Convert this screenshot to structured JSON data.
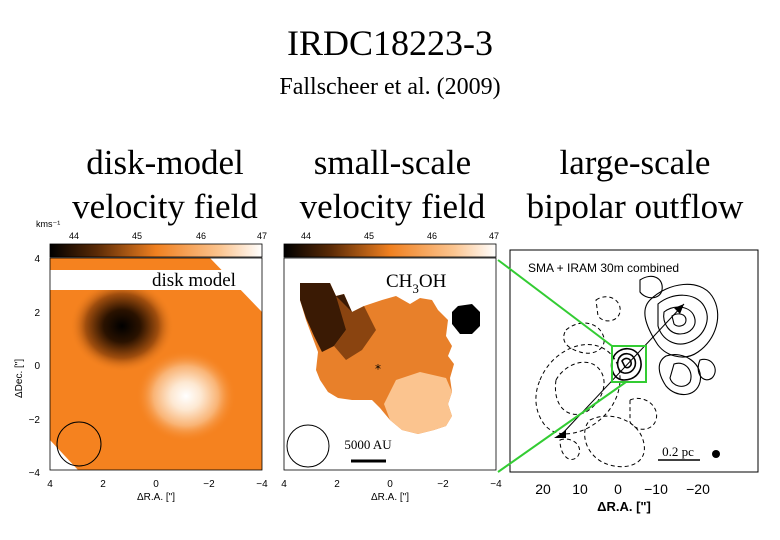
{
  "title": "IRDC18223-3",
  "citation": "Fallscheer et al. (2009)",
  "columns": [
    {
      "line1": "disk-model",
      "line2": "velocity field"
    },
    {
      "line1": "small-scale",
      "line2": "velocity field"
    },
    {
      "line1": "large-scale",
      "line2": "bipolar outflow"
    }
  ],
  "colorbar": {
    "unit": "kms⁻¹",
    "ticks": [
      "44",
      "45",
      "46",
      "47"
    ]
  },
  "panel1": {
    "label": "disk model",
    "yaxis_label": "ΔDec. [\"]",
    "yticks": [
      "4",
      "2",
      "0",
      "−2",
      "−4"
    ],
    "xticks": [
      "4",
      "2",
      "0",
      "−2",
      "−4"
    ],
    "xaxis_label": "ΔR.A. [\"]"
  },
  "panel2": {
    "label_main": "CH",
    "label_sub": "3",
    "label_tail": "OH",
    "scalebar": "5000 AU",
    "xticks": [
      "4",
      "2",
      "0",
      "−2",
      "−4"
    ],
    "xaxis_label": "ΔR.A. [\"]"
  },
  "panel3": {
    "header": "SMA + IRAM 30m combined",
    "scalebar": "0.2 pc",
    "xticks": [
      "20",
      "10",
      "0",
      "−10",
      "−20"
    ],
    "xaxis_label": "ΔR.A. [\"]"
  },
  "colors": {
    "orange": "#f5821f",
    "dark": "#1a0a00",
    "zoom_line": "#33cc33"
  }
}
